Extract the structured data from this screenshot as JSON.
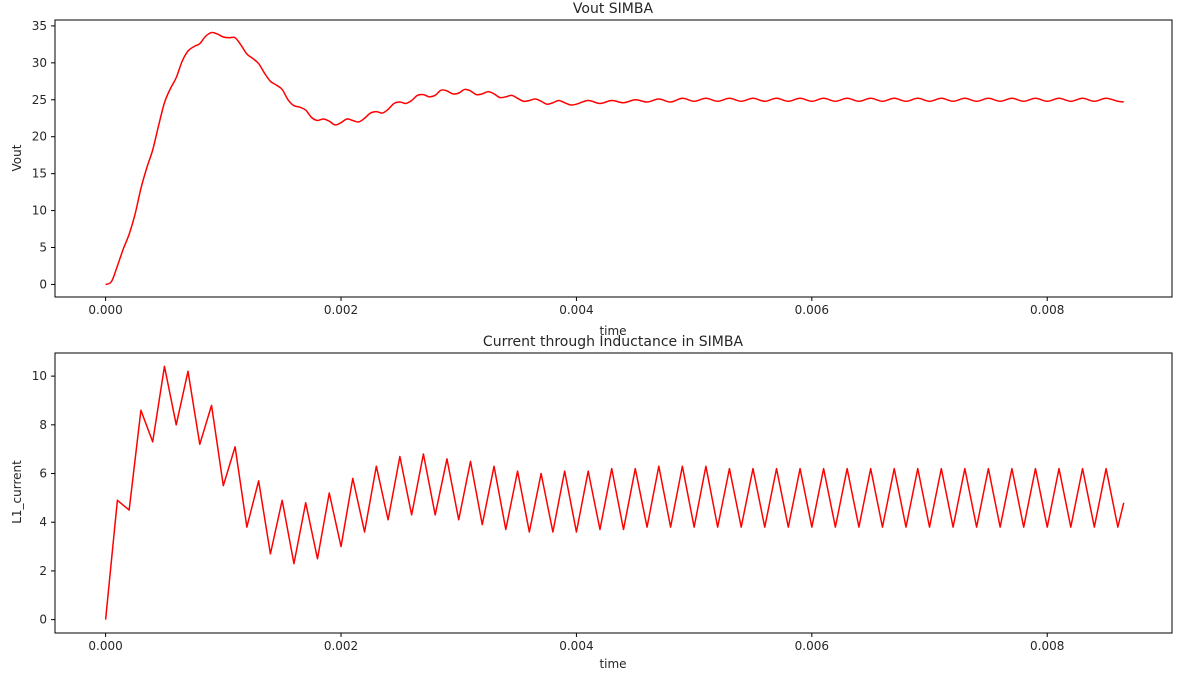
{
  "chart_data": [
    {
      "type": "line",
      "title": "Vout SIMBA",
      "xlabel": "time",
      "ylabel": "Vout",
      "xlim": [
        -0.00043,
        0.00906
      ],
      "ylim": [
        -1.7,
        35.8
      ],
      "xticks": [
        0.0,
        0.002,
        0.004,
        0.006,
        0.008
      ],
      "xtick_labels": [
        "0.000",
        "0.002",
        "0.004",
        "0.006",
        "0.008"
      ],
      "yticks": [
        0,
        5,
        10,
        15,
        20,
        25,
        30,
        35
      ],
      "ytick_labels": [
        "0",
        "5",
        "10",
        "15",
        "20",
        "25",
        "30",
        "35"
      ],
      "grid": false,
      "series": [
        {
          "color": "#ff0000",
          "x": [
            0.0,
            5e-05,
            0.0001,
            0.00015,
            0.0002,
            0.00025,
            0.0003,
            0.00035,
            0.0004,
            0.00045,
            0.0005,
            0.00055,
            0.0006,
            0.00065,
            0.0007,
            0.00075,
            0.0008,
            0.00085,
            0.0009,
            0.00095,
            0.001,
            0.00105,
            0.0011,
            0.00115,
            0.0012,
            0.00125,
            0.0013,
            0.00135,
            0.0014,
            0.00145,
            0.0015,
            0.00155,
            0.0016,
            0.00165,
            0.0017,
            0.00175,
            0.0018,
            0.00185,
            0.0019,
            0.00195,
            0.002,
            0.00205,
            0.0021,
            0.00215,
            0.0022,
            0.00225,
            0.0023,
            0.00235,
            0.0024,
            0.00245,
            0.0025,
            0.00255,
            0.0026,
            0.00265,
            0.0027,
            0.00275,
            0.0028,
            0.00285,
            0.0029,
            0.00295,
            0.003,
            0.00305,
            0.0031,
            0.00315,
            0.0032,
            0.00325,
            0.0033,
            0.00335,
            0.0034,
            0.00345,
            0.0035,
            0.00355,
            0.0036,
            0.00365,
            0.0037,
            0.00375,
            0.0038,
            0.00385,
            0.0039,
            0.00395,
            0.004,
            0.0041,
            0.0042,
            0.0043,
            0.0044,
            0.0045,
            0.0046,
            0.0047,
            0.0048,
            0.0049,
            0.005,
            0.0051,
            0.0052,
            0.0053,
            0.0054,
            0.0055,
            0.0056,
            0.0057,
            0.0058,
            0.0059,
            0.006,
            0.0061,
            0.0062,
            0.0063,
            0.0064,
            0.0065,
            0.0066,
            0.0067,
            0.0068,
            0.0069,
            0.007,
            0.0071,
            0.0072,
            0.0073,
            0.0074,
            0.0075,
            0.0076,
            0.0077,
            0.0078,
            0.0079,
            0.008,
            0.0081,
            0.0082,
            0.0083,
            0.0084,
            0.0085,
            0.0086,
            0.00865
          ],
          "y": [
            0.0,
            0.4,
            2.5,
            4.8,
            6.8,
            9.5,
            13.0,
            15.8,
            18.2,
            21.5,
            24.6,
            26.5,
            28.0,
            30.2,
            31.6,
            32.2,
            32.6,
            33.6,
            34.1,
            33.9,
            33.5,
            33.4,
            33.4,
            32.4,
            31.2,
            30.6,
            29.9,
            28.6,
            27.5,
            27.0,
            26.4,
            25.0,
            24.2,
            24.0,
            23.6,
            22.6,
            22.2,
            22.4,
            22.1,
            21.6,
            21.9,
            22.4,
            22.2,
            22.0,
            22.5,
            23.2,
            23.4,
            23.2,
            23.7,
            24.5,
            24.7,
            24.5,
            24.9,
            25.6,
            25.7,
            25.4,
            25.6,
            26.3,
            26.2,
            25.8,
            25.9,
            26.4,
            26.2,
            25.7,
            25.8,
            26.1,
            25.8,
            25.3,
            25.4,
            25.6,
            25.2,
            24.8,
            24.9,
            25.1,
            24.8,
            24.4,
            24.6,
            24.9,
            24.6,
            24.3,
            24.4,
            24.9,
            24.5,
            24.9,
            24.6,
            25.0,
            24.7,
            25.1,
            24.7,
            25.2,
            24.8,
            25.2,
            24.8,
            25.2,
            24.8,
            25.2,
            24.8,
            25.2,
            24.8,
            25.2,
            24.8,
            25.2,
            24.8,
            25.2,
            24.8,
            25.2,
            24.8,
            25.2,
            24.8,
            25.2,
            24.8,
            25.2,
            24.8,
            25.2,
            24.8,
            25.2,
            24.8,
            25.2,
            24.8,
            25.2,
            24.8,
            25.2,
            24.8,
            25.2,
            24.8,
            25.2,
            24.8,
            24.7
          ]
        }
      ]
    },
    {
      "type": "line",
      "title": "Current through Inductance in SIMBA",
      "xlabel": "time",
      "ylabel": "L1_current",
      "xlim": [
        -0.00043,
        0.00906
      ],
      "ylim": [
        -0.55,
        10.95
      ],
      "xticks": [
        0.0,
        0.002,
        0.004,
        0.006,
        0.008
      ],
      "xtick_labels": [
        "0.000",
        "0.002",
        "0.004",
        "0.006",
        "0.008"
      ],
      "yticks": [
        0,
        2,
        4,
        6,
        8,
        10
      ],
      "ytick_labels": [
        "0",
        "2",
        "4",
        "6",
        "8",
        "10"
      ],
      "grid": false,
      "series": [
        {
          "color": "#ff0000",
          "x": [
            0.0,
            0.0001,
            0.0002,
            0.0003,
            0.0004,
            0.0005,
            0.0006,
            0.0007,
            0.0008,
            0.0009,
            0.001,
            0.0011,
            0.0012,
            0.0013,
            0.0014,
            0.0015,
            0.0016,
            0.0017,
            0.0018,
            0.0019,
            0.002,
            0.0021,
            0.0022,
            0.0023,
            0.0024,
            0.0025,
            0.0026,
            0.0027,
            0.0028,
            0.0029,
            0.003,
            0.0031,
            0.0032,
            0.0033,
            0.0034,
            0.0035,
            0.0036,
            0.0037,
            0.0038,
            0.0039,
            0.004,
            0.0041,
            0.0042,
            0.0043,
            0.0044,
            0.0045,
            0.0046,
            0.0047,
            0.0048,
            0.0049,
            0.005,
            0.0051,
            0.0052,
            0.0053,
            0.0054,
            0.0055,
            0.0056,
            0.0057,
            0.0058,
            0.0059,
            0.006,
            0.0061,
            0.0062,
            0.0063,
            0.0064,
            0.0065,
            0.0066,
            0.0067,
            0.0068,
            0.0069,
            0.007,
            0.0071,
            0.0072,
            0.0073,
            0.0074,
            0.0075,
            0.0076,
            0.0077,
            0.0078,
            0.0079,
            0.008,
            0.0081,
            0.0082,
            0.0083,
            0.0084,
            0.0085,
            0.0086,
            0.00865
          ],
          "y": [
            0.0,
            4.9,
            4.5,
            8.6,
            7.3,
            10.4,
            8.0,
            10.2,
            7.2,
            8.8,
            5.5,
            7.1,
            3.8,
            5.7,
            2.7,
            4.9,
            2.3,
            4.8,
            2.5,
            5.2,
            3.0,
            5.8,
            3.6,
            6.3,
            4.1,
            6.7,
            4.3,
            6.8,
            4.3,
            6.6,
            4.1,
            6.5,
            3.9,
            6.3,
            3.7,
            6.1,
            3.6,
            6.0,
            3.6,
            6.1,
            3.6,
            6.1,
            3.7,
            6.2,
            3.7,
            6.2,
            3.8,
            6.3,
            3.8,
            6.3,
            3.8,
            6.3,
            3.8,
            6.2,
            3.8,
            6.2,
            3.8,
            6.2,
            3.8,
            6.2,
            3.8,
            6.2,
            3.8,
            6.2,
            3.8,
            6.2,
            3.8,
            6.2,
            3.8,
            6.2,
            3.8,
            6.2,
            3.8,
            6.2,
            3.8,
            6.2,
            3.8,
            6.2,
            3.8,
            6.2,
            3.8,
            6.2,
            3.8,
            6.2,
            3.8,
            6.2,
            3.8,
            4.8
          ]
        }
      ]
    }
  ]
}
